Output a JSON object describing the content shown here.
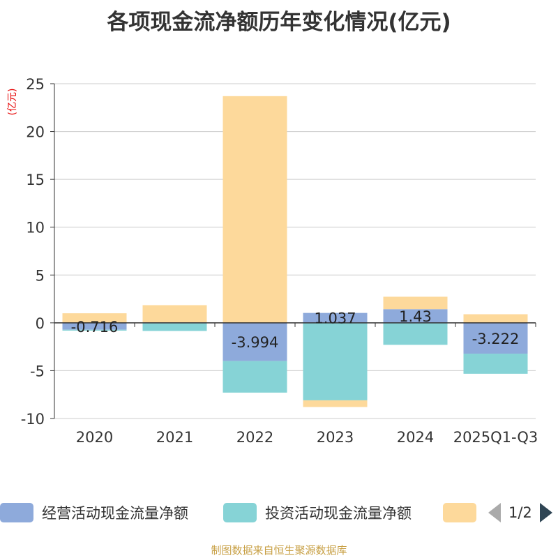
{
  "chart_data": {
    "type": "bar",
    "stacked": true,
    "title": "各项现金流净额历年变化情况(亿元)",
    "ylabel": "(亿元)",
    "xlabel": "",
    "categories": [
      "2020",
      "2021",
      "2022",
      "2023",
      "2024",
      "2025Q1-Q3"
    ],
    "ylim": [
      -10,
      25
    ],
    "yticks": [
      25,
      20,
      15,
      10,
      5,
      0,
      -5,
      -10
    ],
    "grid": true,
    "series": [
      {
        "name": "经营活动现金流量净额",
        "color": "#8eaadb",
        "show_labels": true,
        "values": [
          -0.716,
          0.05,
          -3.994,
          1.037,
          1.43,
          -3.222
        ]
      },
      {
        "name": "投资活动现金流量净额",
        "color": "#86d3d6",
        "show_labels": false,
        "values": [
          -0.1,
          -0.85,
          -3.3,
          -8.1,
          -2.3,
          -2.1
        ]
      },
      {
        "name": "",
        "color": "#fdd99b",
        "show_labels": false,
        "values": [
          1.0,
          1.8,
          23.7,
          -0.7,
          1.3,
          0.9
        ]
      }
    ],
    "data_labels": [
      "-0.716",
      "",
      "-3.994",
      "1.037",
      "1.43",
      "-3.222"
    ],
    "legend_position": "bottom"
  },
  "legend": {
    "pager_text": "1/2"
  },
  "source": "制图数据来自恒生聚源数据库"
}
